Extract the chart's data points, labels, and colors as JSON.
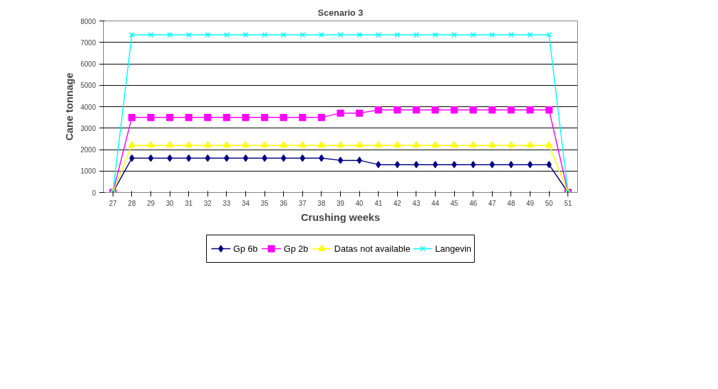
{
  "chart_data": {
    "type": "line",
    "title": "Scenario 3",
    "xlabel": "Crushing weeks",
    "ylabel": "Cane tonnage",
    "categories": [
      "27",
      "28",
      "29",
      "30",
      "31",
      "32",
      "33",
      "34",
      "35",
      "36",
      "37",
      "38",
      "39",
      "40",
      "41",
      "42",
      "43",
      "44",
      "45",
      "46",
      "47",
      "48",
      "49",
      "50",
      "51"
    ],
    "series": [
      {
        "name": "Gp 6b",
        "color": "#000080",
        "marker": "diamond",
        "values": [
          0,
          1600,
          1600,
          1600,
          1600,
          1600,
          1600,
          1600,
          1600,
          1600,
          1600,
          1600,
          1500,
          1500,
          1300,
          1300,
          1300,
          1300,
          1300,
          1300,
          1300,
          1300,
          1300,
          1300,
          0
        ]
      },
      {
        "name": "Gp 2b",
        "color": "#ff00ff",
        "marker": "square",
        "values": [
          0,
          3500,
          3500,
          3500,
          3500,
          3500,
          3500,
          3500,
          3500,
          3500,
          3500,
          3500,
          3700,
          3700,
          3850,
          3850,
          3850,
          3850,
          3850,
          3850,
          3850,
          3850,
          3850,
          3850,
          0
        ]
      },
      {
        "name": "Datas not available",
        "color": "#ffff00",
        "marker": "triangle",
        "values": [
          0,
          2200,
          2200,
          2200,
          2200,
          2200,
          2200,
          2200,
          2200,
          2200,
          2200,
          2200,
          2200,
          2200,
          2200,
          2200,
          2200,
          2200,
          2200,
          2200,
          2200,
          2200,
          2200,
          2200,
          0
        ]
      },
      {
        "name": "Langevin",
        "color": "#00ffff",
        "marker": "cross",
        "values": [
          0,
          7350,
          7350,
          7350,
          7350,
          7350,
          7350,
          7350,
          7350,
          7350,
          7350,
          7350,
          7350,
          7350,
          7350,
          7350,
          7350,
          7350,
          7350,
          7350,
          7350,
          7350,
          7350,
          7350,
          0
        ]
      }
    ],
    "ylim": [
      0,
      8000
    ],
    "yticks": [
      0,
      1000,
      2000,
      3000,
      4000,
      5000,
      6000,
      7000,
      8000
    ],
    "grid": "y",
    "legend": "bottom",
    "line_style": "solid"
  }
}
